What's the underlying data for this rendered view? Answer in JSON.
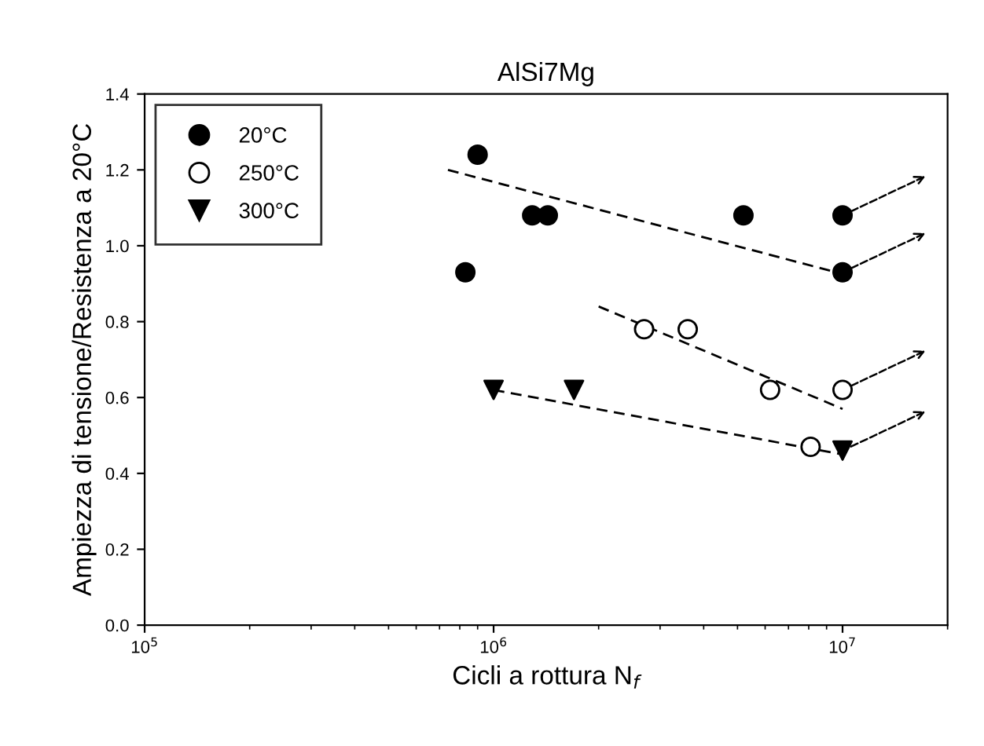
{
  "chart_data": {
    "type": "scatter",
    "title": "AlSi7Mg",
    "xlabel": "Cicli a rottura N$_{f}$",
    "ylabel": "Ampiezza di tensione/Resistenza a 20°C",
    "log": "x",
    "xlim": [
      100000,
      20000000
    ],
    "xticks": [
      {
        "value": 100000,
        "label": "10$^{5}$"
      },
      {
        "value": 1000000,
        "label": "10$^{6}$"
      },
      {
        "value": 10000000,
        "label": "10$^{7}$"
      }
    ],
    "ylim": [
      0,
      1.4
    ],
    "yticks": [
      {
        "value": 0,
        "label": "0.0"
      },
      {
        "value": 0.2,
        "label": "0.2"
      },
      {
        "value": 0.4,
        "label": "0.4"
      },
      {
        "value": 0.6,
        "label": "0.6"
      },
      {
        "value": 0.8,
        "label": "0.8"
      },
      {
        "value": 1,
        "label": "1.0"
      },
      {
        "value": 1.2,
        "label": "1.2"
      },
      {
        "value": 1.4,
        "label": "1.4"
      }
    ],
    "grid": false,
    "legend": "top left",
    "series": [
      {
        "name": "20°C",
        "color": "#000000",
        "marker": "circle",
        "x": [
          830000,
          900000,
          1290000,
          1430000,
          5200000,
          10000000,
          10000000
        ],
        "values": [
          0.93,
          1.24,
          1.08,
          1.08,
          1.08,
          1.08,
          0.93
        ]
      },
      {
        "name": "250°C",
        "color": "#ffffff",
        "marker": "circle",
        "x": [
          2700000,
          3600000,
          6200000,
          8100000,
          10000000
        ],
        "values": [
          0.78,
          0.78,
          0.62,
          0.47,
          0.62
        ]
      },
      {
        "name": "300°C",
        "color": "#000000",
        "marker": "triangle",
        "x": [
          1000000,
          1700000,
          10000000
        ],
        "values": [
          0.62,
          0.62,
          0.46
        ]
      },
      {
        "type": "line",
        "color": "#000000",
        "line_style": "dashed",
        "x": [
          740000,
          9600000
        ],
        "values": [
          1.2,
          0.93
        ]
      },
      {
        "type": "line",
        "color": "#000000",
        "line_style": "dashed",
        "x": [
          2000000,
          10000000
        ],
        "values": [
          0.84,
          0.57
        ]
      },
      {
        "type": "line",
        "color": "#000000",
        "line_style": "dashed",
        "x": [
          1000000,
          10000000
        ],
        "values": [
          0.62,
          0.45
        ]
      }
    ]
  }
}
